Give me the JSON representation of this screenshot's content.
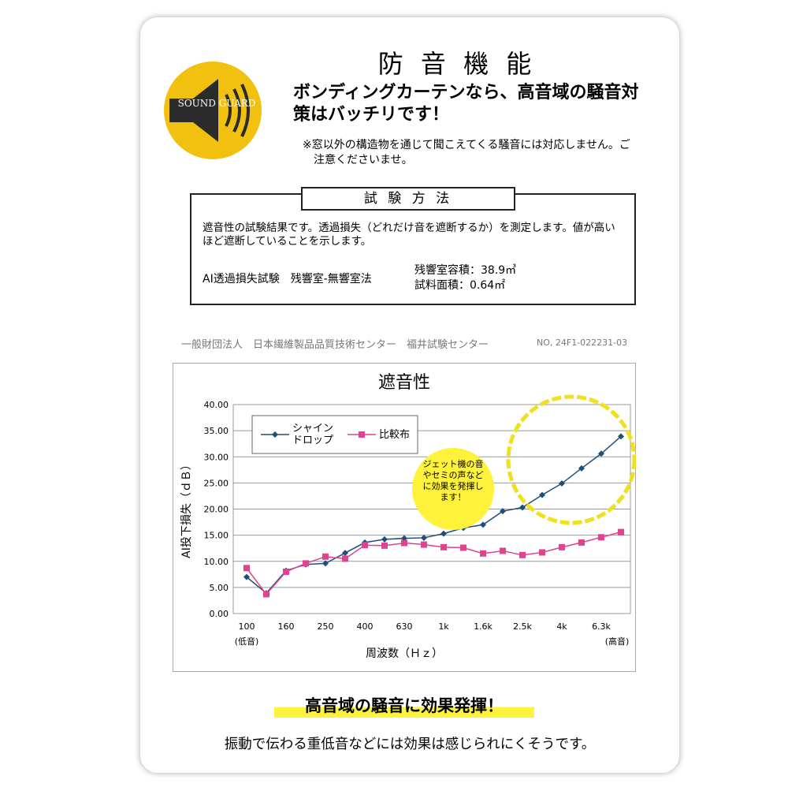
{
  "header": {
    "title": "防 音 機 能",
    "logo": "SOUND GUARD",
    "headline": "ボンディングカーテンなら、高音域の騒音対策はバッチリです！",
    "note": "※窓以外の構造物を通じて聞こえてくる騒音には対応しません。ご注意くださいませ。"
  },
  "method": {
    "title": "試 験 方 法",
    "text": "遮音性の試験結果です。透過損失（どれだけ音を遮断するか）を測定します。値が高いほど遮断していることを示します。",
    "test": "AI透過損失試験　残響室-無響室法",
    "specs": [
      "残響室容積：38.9㎥",
      "試料面積：0.64㎡"
    ]
  },
  "source": {
    "org": "一般財団法人　日本繊維製品品質技術センター　福井試験センター",
    "number": "NO, 24F1-022231-03"
  },
  "chart_data": {
    "type": "line",
    "title": "遮音性",
    "x_label": "周波数（Ｈｚ）",
    "y_label": "AI投下損失（ｄＢ）",
    "categories": [
      "100",
      null,
      "160",
      null,
      "250",
      null,
      "400",
      null,
      "630",
      null,
      "1k",
      null,
      "1.6k",
      null,
      "2.5k",
      null,
      "4k",
      null,
      "6.3k",
      null
    ],
    "series": [
      {
        "name": "シャイン\nドロップ",
        "color": "#1f4e79",
        "marker": "diamond",
        "values": [
          7.0,
          3.9,
          8.2,
          9.4,
          9.6,
          11.6,
          13.6,
          14.2,
          14.4,
          14.5,
          15.3,
          16.4,
          17.0,
          19.6,
          20.3,
          22.7,
          24.9,
          27.8,
          30.6,
          33.9
        ]
      },
      {
        "name": "比較布",
        "color": "#e0428f",
        "marker": "square",
        "values": [
          8.7,
          3.7,
          8.0,
          9.6,
          10.9,
          10.5,
          13.1,
          13.0,
          13.5,
          13.2,
          12.7,
          12.6,
          11.5,
          12.0,
          11.2,
          11.7,
          12.7,
          13.6,
          14.6,
          15.6
        ]
      }
    ],
    "ylim": [
      0,
      40
    ],
    "yticks": [
      {
        "value": 0,
        "label": "0.00"
      },
      {
        "value": 5,
        "label": "5.00"
      },
      {
        "value": 10,
        "label": "10.00"
      },
      {
        "value": 15,
        "label": "15.00"
      },
      {
        "value": 20,
        "label": "20.00"
      },
      {
        "value": 25,
        "label": "25.00"
      },
      {
        "value": 30,
        "label": "30.00"
      },
      {
        "value": 35,
        "label": "35.00"
      },
      {
        "value": 40,
        "label": "40.00"
      }
    ],
    "grid": true,
    "annotations": {
      "low": "(低音)",
      "high": "(高音)",
      "callout": "ジェット機の音やセミの声などに効果を発揮します！"
    }
  },
  "footer": {
    "highlight": "高音域の騒音に効果発揮！",
    "text": "振動で伝わる重低音などには効果は感じられにくそうです。"
  }
}
